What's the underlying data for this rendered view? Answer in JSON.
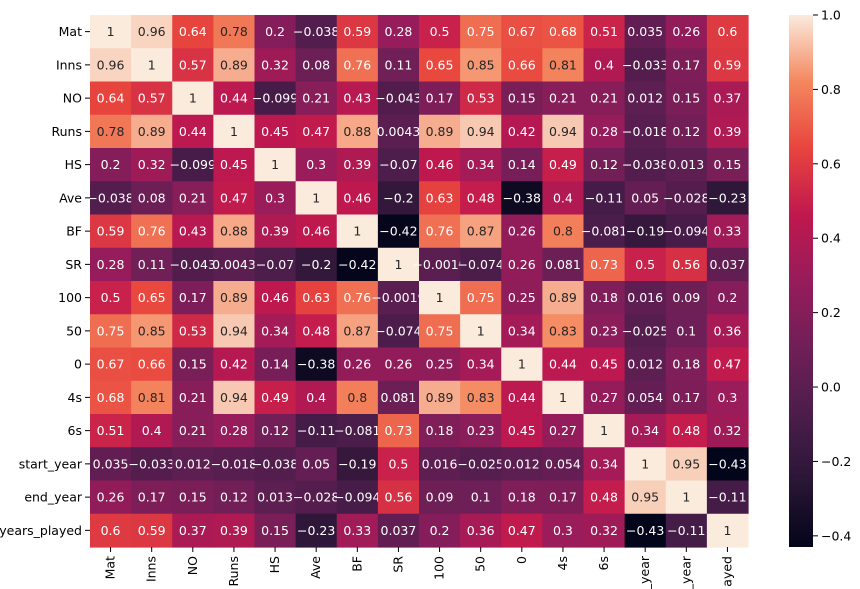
{
  "chart_data": {
    "type": "heatmap",
    "title": "",
    "row_labels": [
      "Mat",
      "Inns",
      "NO",
      "Runs",
      "HS",
      "Ave",
      "BF",
      "SR",
      "100",
      "50",
      "0",
      "4s",
      "6s",
      "start_year",
      "end_year",
      "years_played"
    ],
    "col_labels": [
      "Mat",
      "Inns",
      "NO",
      "Runs",
      "HS",
      "Ave",
      "BF",
      "SR",
      "100",
      "50",
      "0",
      "4s",
      "6s",
      "_year",
      "_year",
      "ayed"
    ],
    "values": [
      [
        1,
        0.96,
        0.64,
        0.78,
        0.2,
        -0.038,
        0.59,
        0.28,
        0.5,
        0.75,
        0.67,
        0.68,
        0.51,
        0.035,
        0.26,
        0.6
      ],
      [
        0.96,
        1,
        0.57,
        0.89,
        0.32,
        0.08,
        0.76,
        0.11,
        0.65,
        0.85,
        0.66,
        0.81,
        0.4,
        -0.033,
        0.17,
        0.59
      ],
      [
        0.64,
        0.57,
        1,
        0.44,
        -0.099,
        0.21,
        0.43,
        -0.043,
        0.17,
        0.53,
        0.15,
        0.21,
        0.21,
        0.012,
        0.15,
        0.37
      ],
      [
        0.78,
        0.89,
        0.44,
        1,
        0.45,
        0.47,
        0.88,
        0.0043,
        0.89,
        0.94,
        0.42,
        0.94,
        0.28,
        -0.018,
        0.12,
        0.39
      ],
      [
        0.2,
        0.32,
        -0.099,
        0.45,
        1,
        0.3,
        0.39,
        -0.07,
        0.46,
        0.34,
        0.14,
        0.49,
        0.12,
        -0.038,
        0.013,
        0.15
      ],
      [
        -0.038,
        0.08,
        0.21,
        0.47,
        0.3,
        1,
        0.46,
        -0.2,
        0.63,
        0.48,
        -0.38,
        0.4,
        -0.11,
        0.05,
        -0.028,
        -0.23
      ],
      [
        0.59,
        0.76,
        0.43,
        0.88,
        0.39,
        0.46,
        1,
        -0.42,
        0.76,
        0.87,
        0.26,
        0.8,
        -0.081,
        -0.19,
        -0.094,
        0.33
      ],
      [
        0.28,
        0.11,
        -0.043,
        0.0043,
        -0.07,
        -0.2,
        -0.42,
        1,
        -0.0019,
        -0.074,
        0.26,
        0.081,
        0.73,
        0.5,
        0.56,
        0.037
      ],
      [
        0.5,
        0.65,
        0.17,
        0.89,
        0.46,
        0.63,
        0.76,
        -0.0019,
        1,
        0.75,
        0.25,
        0.89,
        0.18,
        0.016,
        0.09,
        0.2
      ],
      [
        0.75,
        0.85,
        0.53,
        0.94,
        0.34,
        0.48,
        0.87,
        -0.074,
        0.75,
        1,
        0.34,
        0.83,
        0.23,
        -0.025,
        0.1,
        0.36
      ],
      [
        0.67,
        0.66,
        0.15,
        0.42,
        0.14,
        -0.38,
        0.26,
        0.26,
        0.25,
        0.34,
        1,
        0.44,
        0.45,
        0.012,
        0.18,
        0.47
      ],
      [
        0.68,
        0.81,
        0.21,
        0.94,
        0.49,
        0.4,
        0.8,
        0.081,
        0.89,
        0.83,
        0.44,
        1,
        0.27,
        0.054,
        0.17,
        0.3
      ],
      [
        0.51,
        0.4,
        0.21,
        0.28,
        0.12,
        -0.11,
        -0.081,
        0.73,
        0.18,
        0.23,
        0.45,
        0.27,
        1,
        0.34,
        0.48,
        0.32
      ],
      [
        0.035,
        -0.033,
        0.012,
        -0.018,
        -0.038,
        0.05,
        -0.19,
        0.5,
        0.016,
        -0.025,
        0.012,
        0.054,
        0.34,
        1,
        0.95,
        -0.43
      ],
      [
        0.26,
        0.17,
        0.15,
        0.12,
        0.013,
        -0.028,
        -0.094,
        0.56,
        0.09,
        0.1,
        0.18,
        0.17,
        0.48,
        0.95,
        1,
        -0.11
      ],
      [
        0.6,
        0.59,
        0.37,
        0.39,
        0.15,
        -0.23,
        0.33,
        0.037,
        0.2,
        0.36,
        0.47,
        0.3,
        0.32,
        -0.43,
        -0.11,
        1
      ]
    ],
    "value_range": [
      -0.43,
      1.0
    ],
    "colormap": "rocket",
    "colorbar_ticks": [
      1.0,
      0.8,
      0.6,
      0.4,
      0.2,
      0.0,
      -0.2,
      -0.4
    ],
    "colorbar_tick_labels": [
      "1.0",
      "0.8",
      "0.6",
      "0.4",
      "0.2",
      "0.0",
      "−0.2",
      "−0.4"
    ],
    "annotated": true
  }
}
